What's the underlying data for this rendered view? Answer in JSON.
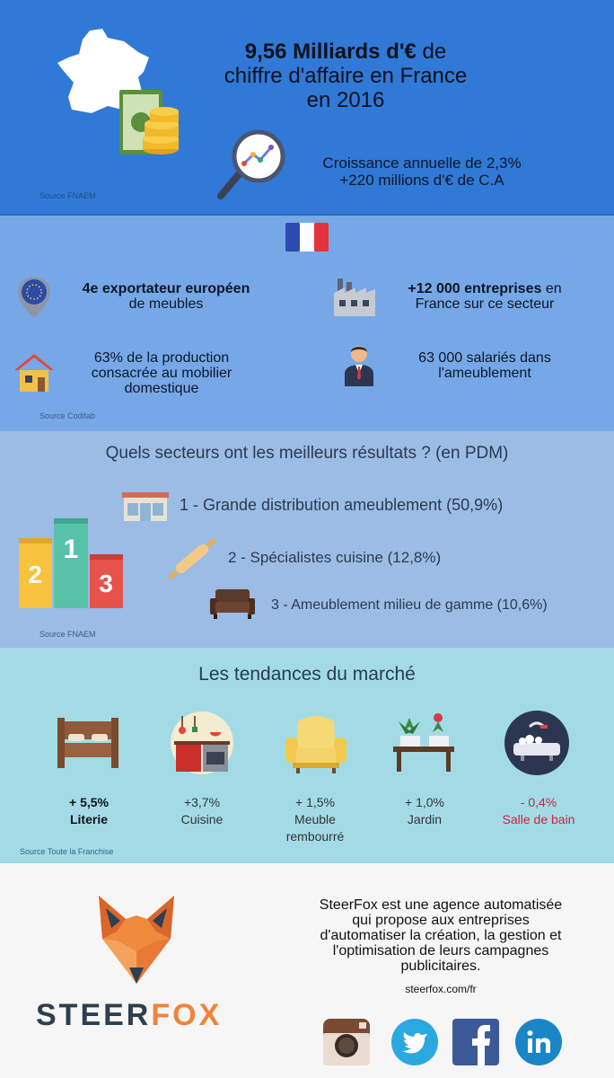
{
  "hero": {
    "line1_bold": "9,56 Milliards d'€",
    "line1_rest": " de",
    "line2": "chiffre d'affaire en France",
    "line3": "en 2016",
    "growth1": "Croissance annuelle de 2,3%",
    "growth2": "+220 millions d'€ de C.A",
    "source": "Source FNAEM"
  },
  "stats": {
    "export_bold": "4e exportateur européen",
    "export_rest": "de meubles",
    "companies_bold": "+12 000 entreprises",
    "companies_rest1": " en",
    "companies_rest2": "France sur ce secteur",
    "production1": "63% de la production",
    "production2": "consacrée au mobilier",
    "production3": "domestique",
    "employees1": "63 000 salariés dans",
    "employees2": "l'ameublement",
    "source": "Source Codifab"
  },
  "sectors": {
    "title": "Quels secteurs ont les meilleurs résultats ? (en PDM)",
    "items": [
      "1 - Grande distribution ameublement (50,9%)",
      "2 - Spécialistes cuisine (12,8%)",
      "3 - Ameublement milieu de gamme (10,6%)"
    ],
    "podium": [
      "2",
      "1",
      "3"
    ],
    "source": "Source FNAEM"
  },
  "trends": {
    "title": "Les tendances du marché",
    "items": [
      {
        "value": "+ 5,5%",
        "label": "Literie"
      },
      {
        "value": "+3,7%",
        "label": "Cuisine"
      },
      {
        "value": "+ 1,5%",
        "label": "Meuble rembourré"
      },
      {
        "value": "+ 1,0%",
        "label": "Jardin"
      },
      {
        "value": "- 0,4%",
        "label": "Salle de bain"
      }
    ],
    "source": "Source Toute la Franchise"
  },
  "footer": {
    "brand1": "STEER",
    "brand2": "FOX",
    "desc1": "SteerFox est une agence automatisée",
    "desc2": "qui propose aux entreprises",
    "desc3": "d'automatiser la création, la gestion et",
    "desc4": "l'optimisation de leurs campagnes",
    "desc5": "publicitaires.",
    "url": "steerfox.com/fr",
    "social": [
      "instagram-icon",
      "twitter-icon",
      "facebook-icon",
      "linkedin-icon"
    ]
  }
}
